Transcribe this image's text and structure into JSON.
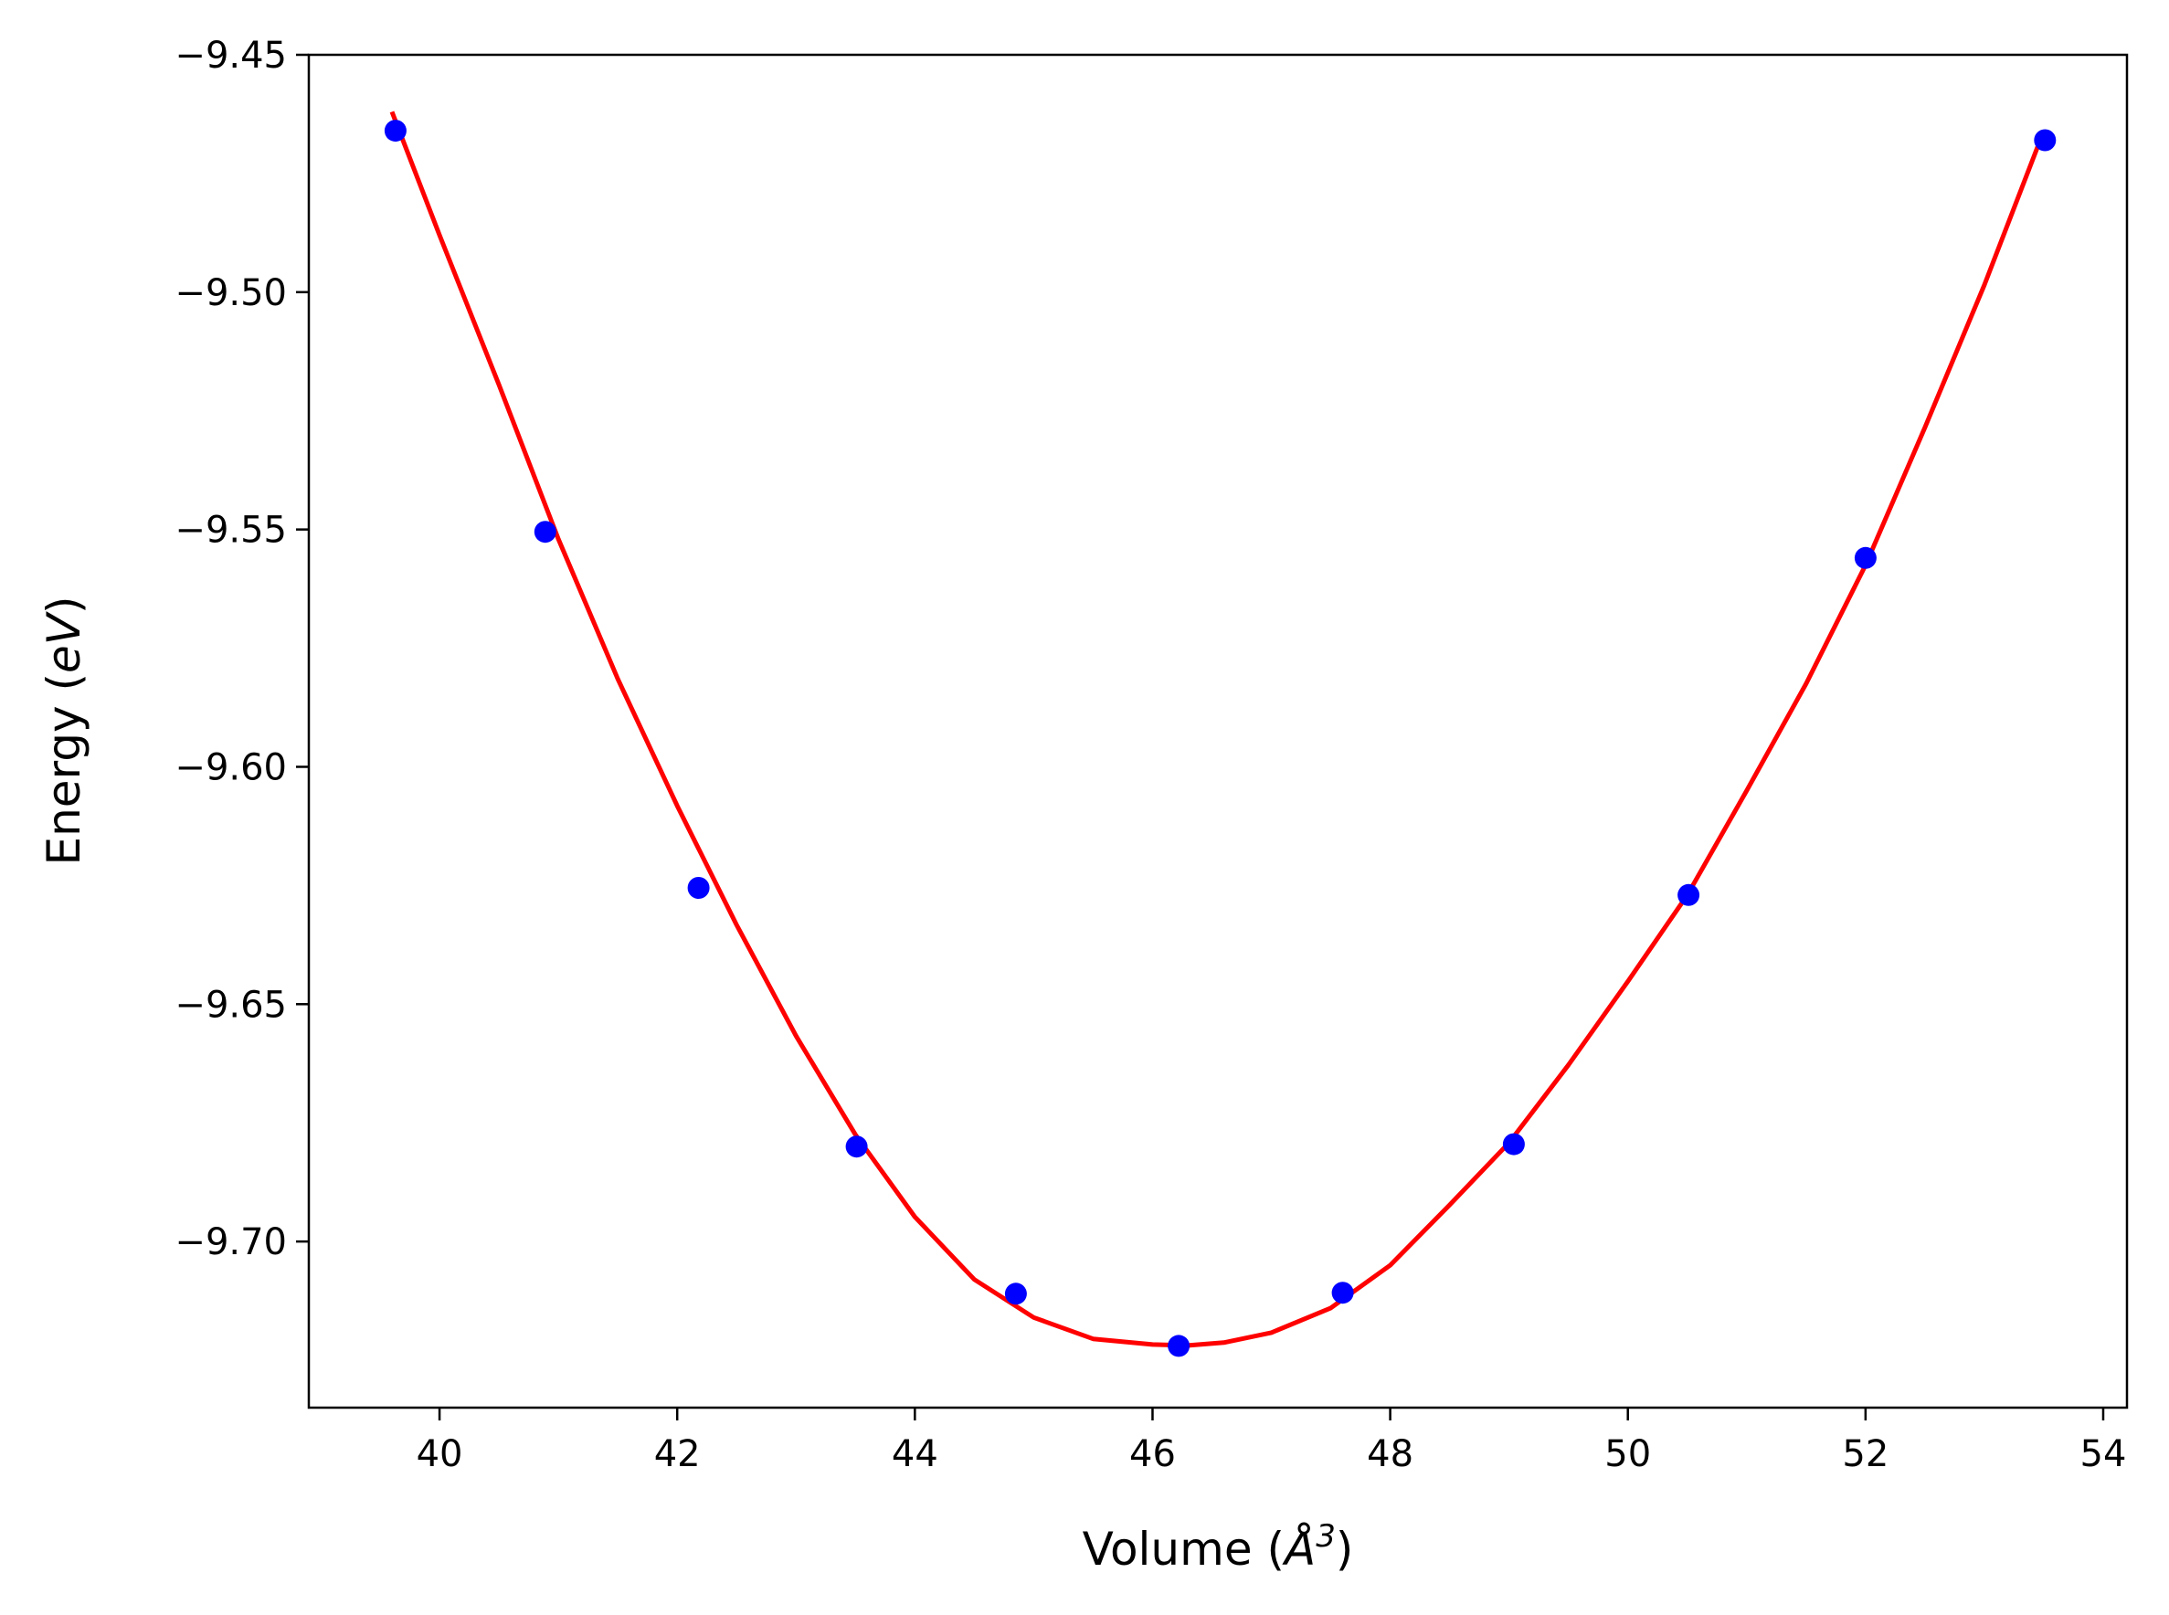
{
  "chart_data": {
    "type": "scatter",
    "xlabel": {
      "prefix": "Volume (",
      "symbol": "Å",
      "sup": "3",
      "suffix": ")"
    },
    "ylabel": {
      "prefix": "Energy (",
      "unit": "eV",
      "suffix": ")"
    },
    "xlim": [
      38.9,
      54.2
    ],
    "ylim": [
      -9.735,
      -9.45
    ],
    "xticks": [
      40,
      42,
      44,
      46,
      48,
      50,
      52,
      54
    ],
    "yticks": [
      -9.45,
      -9.5,
      -9.55,
      -9.6,
      -9.65,
      -9.7
    ],
    "xtick_labels": [
      "40",
      "42",
      "44",
      "46",
      "48",
      "50",
      "52",
      "54"
    ],
    "ytick_labels": [
      "−9.45",
      "−9.50",
      "−9.55",
      "−9.60",
      "−9.65",
      "−9.70"
    ],
    "grid": false,
    "series": [
      {
        "kind": "points",
        "color": "#0000ff",
        "x": [
          39.63,
          40.89,
          42.18,
          43.51,
          44.85,
          46.22,
          47.6,
          49.04,
          50.51,
          52.0,
          53.51
        ],
        "y": [
          -9.466,
          -9.5505,
          -9.6255,
          -9.68,
          -9.711,
          -9.722,
          -9.7108,
          -9.6795,
          -9.627,
          -9.556,
          -9.468
        ]
      },
      {
        "kind": "fit-curve",
        "color": "#ff0000",
        "x": [
          39.6,
          40.0,
          40.5,
          41.0,
          41.5,
          42.0,
          42.5,
          43.0,
          43.5,
          44.0,
          44.5,
          45.0,
          45.5,
          46.0,
          46.3,
          46.6,
          47.0,
          47.5,
          48.0,
          48.5,
          49.0,
          49.5,
          50.0,
          50.5,
          51.0,
          51.5,
          52.0,
          52.5,
          53.0,
          53.5
        ],
        "y": [
          -9.462,
          -9.488,
          -9.5195,
          -9.552,
          -9.5815,
          -9.6082,
          -9.6333,
          -9.6567,
          -9.6775,
          -9.6948,
          -9.708,
          -9.716,
          -9.7205,
          -9.7217,
          -9.7219,
          -9.7213,
          -9.7192,
          -9.714,
          -9.705,
          -9.6923,
          -9.6792,
          -9.6628,
          -9.6452,
          -9.627,
          -9.605,
          -9.5825,
          -9.5575,
          -9.5285,
          -9.4985,
          -9.466
        ]
      }
    ]
  }
}
